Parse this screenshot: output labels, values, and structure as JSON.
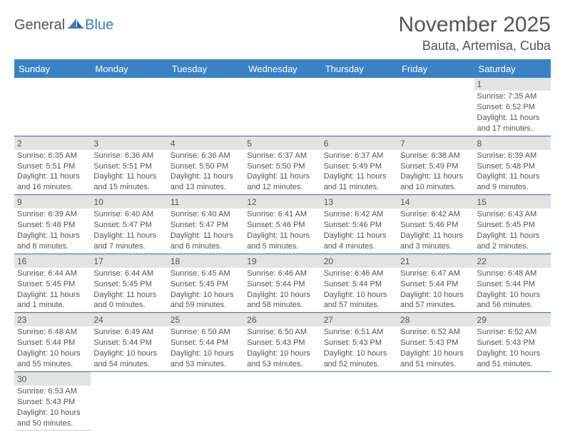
{
  "logo": {
    "word1": "General",
    "word2": "Blue"
  },
  "title": "November 2025",
  "location": "Bauta, Artemisa, Cuba",
  "colors": {
    "header_bg": "#3b82c4",
    "header_text": "#ffffff",
    "daybar_bg": "#e3e3e3",
    "rule": "#3b82c4",
    "text": "#555555"
  },
  "weekdays": [
    "Sunday",
    "Monday",
    "Tuesday",
    "Wednesday",
    "Thursday",
    "Friday",
    "Saturday"
  ],
  "weeks": [
    [
      {
        "blank": true
      },
      {
        "blank": true
      },
      {
        "blank": true
      },
      {
        "blank": true
      },
      {
        "blank": true
      },
      {
        "blank": true
      },
      {
        "n": "1",
        "sr": "Sunrise: 7:35 AM",
        "ss": "Sunset: 6:52 PM",
        "dl": "Daylight: 11 hours and 17 minutes."
      }
    ],
    [
      {
        "n": "2",
        "sr": "Sunrise: 6:35 AM",
        "ss": "Sunset: 5:51 PM",
        "dl": "Daylight: 11 hours and 16 minutes."
      },
      {
        "n": "3",
        "sr": "Sunrise: 6:36 AM",
        "ss": "Sunset: 5:51 PM",
        "dl": "Daylight: 11 hours and 15 minutes."
      },
      {
        "n": "4",
        "sr": "Sunrise: 6:36 AM",
        "ss": "Sunset: 5:50 PM",
        "dl": "Daylight: 11 hours and 13 minutes."
      },
      {
        "n": "5",
        "sr": "Sunrise: 6:37 AM",
        "ss": "Sunset: 5:50 PM",
        "dl": "Daylight: 11 hours and 12 minutes."
      },
      {
        "n": "6",
        "sr": "Sunrise: 6:37 AM",
        "ss": "Sunset: 5:49 PM",
        "dl": "Daylight: 11 hours and 11 minutes."
      },
      {
        "n": "7",
        "sr": "Sunrise: 6:38 AM",
        "ss": "Sunset: 5:49 PM",
        "dl": "Daylight: 11 hours and 10 minutes."
      },
      {
        "n": "8",
        "sr": "Sunrise: 6:39 AM",
        "ss": "Sunset: 5:48 PM",
        "dl": "Daylight: 11 hours and 9 minutes."
      }
    ],
    [
      {
        "n": "9",
        "sr": "Sunrise: 6:39 AM",
        "ss": "Sunset: 5:48 PM",
        "dl": "Daylight: 11 hours and 8 minutes."
      },
      {
        "n": "10",
        "sr": "Sunrise: 6:40 AM",
        "ss": "Sunset: 5:47 PM",
        "dl": "Daylight: 11 hours and 7 minutes."
      },
      {
        "n": "11",
        "sr": "Sunrise: 6:40 AM",
        "ss": "Sunset: 5:47 PM",
        "dl": "Daylight: 11 hours and 6 minutes."
      },
      {
        "n": "12",
        "sr": "Sunrise: 6:41 AM",
        "ss": "Sunset: 5:46 PM",
        "dl": "Daylight: 11 hours and 5 minutes."
      },
      {
        "n": "13",
        "sr": "Sunrise: 6:42 AM",
        "ss": "Sunset: 5:46 PM",
        "dl": "Daylight: 11 hours and 4 minutes."
      },
      {
        "n": "14",
        "sr": "Sunrise: 6:42 AM",
        "ss": "Sunset: 5:46 PM",
        "dl": "Daylight: 11 hours and 3 minutes."
      },
      {
        "n": "15",
        "sr": "Sunrise: 6:43 AM",
        "ss": "Sunset: 5:45 PM",
        "dl": "Daylight: 11 hours and 2 minutes."
      }
    ],
    [
      {
        "n": "16",
        "sr": "Sunrise: 6:44 AM",
        "ss": "Sunset: 5:45 PM",
        "dl": "Daylight: 11 hours and 1 minute."
      },
      {
        "n": "17",
        "sr": "Sunrise: 6:44 AM",
        "ss": "Sunset: 5:45 PM",
        "dl": "Daylight: 11 hours and 0 minutes."
      },
      {
        "n": "18",
        "sr": "Sunrise: 6:45 AM",
        "ss": "Sunset: 5:45 PM",
        "dl": "Daylight: 10 hours and 59 minutes."
      },
      {
        "n": "19",
        "sr": "Sunrise: 6:46 AM",
        "ss": "Sunset: 5:44 PM",
        "dl": "Daylight: 10 hours and 58 minutes."
      },
      {
        "n": "20",
        "sr": "Sunrise: 6:46 AM",
        "ss": "Sunset: 5:44 PM",
        "dl": "Daylight: 10 hours and 57 minutes."
      },
      {
        "n": "21",
        "sr": "Sunrise: 6:47 AM",
        "ss": "Sunset: 5:44 PM",
        "dl": "Daylight: 10 hours and 57 minutes."
      },
      {
        "n": "22",
        "sr": "Sunrise: 6:48 AM",
        "ss": "Sunset: 5:44 PM",
        "dl": "Daylight: 10 hours and 56 minutes."
      }
    ],
    [
      {
        "n": "23",
        "sr": "Sunrise: 6:48 AM",
        "ss": "Sunset: 5:44 PM",
        "dl": "Daylight: 10 hours and 55 minutes."
      },
      {
        "n": "24",
        "sr": "Sunrise: 6:49 AM",
        "ss": "Sunset: 5:44 PM",
        "dl": "Daylight: 10 hours and 54 minutes."
      },
      {
        "n": "25",
        "sr": "Sunrise: 6:50 AM",
        "ss": "Sunset: 5:44 PM",
        "dl": "Daylight: 10 hours and 53 minutes."
      },
      {
        "n": "26",
        "sr": "Sunrise: 6:50 AM",
        "ss": "Sunset: 5:43 PM",
        "dl": "Daylight: 10 hours and 53 minutes."
      },
      {
        "n": "27",
        "sr": "Sunrise: 6:51 AM",
        "ss": "Sunset: 5:43 PM",
        "dl": "Daylight: 10 hours and 52 minutes."
      },
      {
        "n": "28",
        "sr": "Sunrise: 6:52 AM",
        "ss": "Sunset: 5:43 PM",
        "dl": "Daylight: 10 hours and 51 minutes."
      },
      {
        "n": "29",
        "sr": "Sunrise: 6:52 AM",
        "ss": "Sunset: 5:43 PM",
        "dl": "Daylight: 10 hours and 51 minutes."
      }
    ],
    [
      {
        "n": "30",
        "sr": "Sunrise: 6:53 AM",
        "ss": "Sunset: 5:43 PM",
        "dl": "Daylight: 10 hours and 50 minutes."
      },
      {
        "blank": true
      },
      {
        "blank": true
      },
      {
        "blank": true
      },
      {
        "blank": true
      },
      {
        "blank": true
      },
      {
        "blank": true
      }
    ]
  ]
}
